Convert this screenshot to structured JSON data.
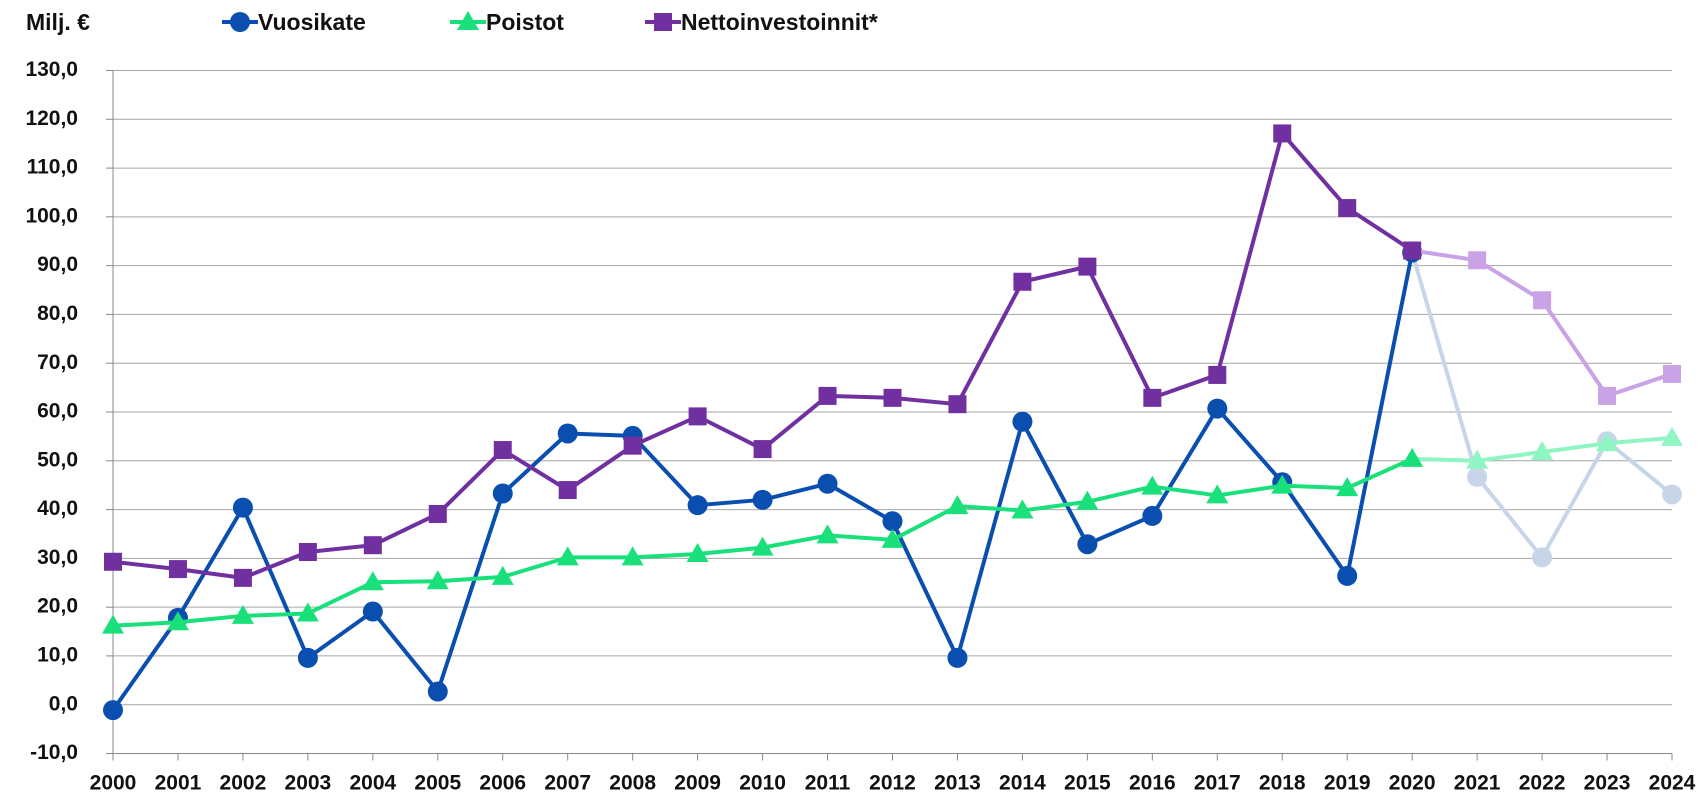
{
  "chart_data": {
    "type": "line",
    "y_label": "Milj. €",
    "categories": [
      "2000",
      "2001",
      "2002",
      "2003",
      "2004",
      "2005",
      "2006",
      "2007",
      "2008",
      "2009",
      "2010",
      "2011",
      "2012",
      "2013",
      "2014",
      "2015",
      "2016",
      "2017",
      "2018",
      "2019",
      "2020",
      "2021",
      "2022",
      "2023",
      "2024"
    ],
    "projected_from": "2020",
    "series": [
      {
        "name": "Vuosikate",
        "color": "#0a4fb0",
        "projected_color": "#c6d6e8",
        "marker": "circle",
        "values": [
          -1.1,
          17.8,
          40.4,
          9.6,
          19.1,
          2.7,
          43.3,
          55.6,
          55.1,
          40.9,
          42.0,
          45.3,
          37.6,
          9.6,
          58.0,
          32.9,
          38.7,
          60.7,
          45.6,
          26.4,
          92.7,
          46.7,
          30.2,
          54.0,
          43.1
        ]
      },
      {
        "name": "Poistot",
        "color": "#19e07a",
        "projected_color": "#8ff5c2",
        "marker": "triangle",
        "values": [
          16.2,
          16.9,
          18.2,
          18.7,
          25.1,
          25.3,
          26.2,
          30.2,
          30.2,
          30.9,
          32.2,
          34.7,
          33.8,
          40.7,
          39.8,
          41.6,
          44.7,
          42.9,
          44.9,
          44.4,
          50.4,
          50.0,
          51.8,
          53.6,
          54.7
        ]
      },
      {
        "name": "Nettoinvestoinnit*",
        "color": "#7030a0",
        "projected_color": "#c9a3e6",
        "marker": "square",
        "values": [
          29.3,
          27.8,
          26.0,
          31.3,
          32.7,
          39.1,
          52.2,
          44.0,
          53.1,
          59.1,
          52.4,
          63.3,
          62.9,
          61.6,
          86.7,
          89.8,
          62.9,
          67.6,
          117.1,
          101.8,
          93.1,
          91.1,
          82.9,
          63.3,
          67.8
        ]
      }
    ],
    "ylim": [
      -10,
      130
    ],
    "yticks": [
      {
        "value": -10,
        "label": "-10,0"
      },
      {
        "value": 0,
        "label": "0,0"
      },
      {
        "value": 10,
        "label": "10,0"
      },
      {
        "value": 20,
        "label": "20,0"
      },
      {
        "value": 30,
        "label": "30,0"
      },
      {
        "value": 40,
        "label": "40,0"
      },
      {
        "value": 50,
        "label": "50,0"
      },
      {
        "value": 60,
        "label": "60,0"
      },
      {
        "value": 70,
        "label": "70,0"
      },
      {
        "value": 80,
        "label": "80,0"
      },
      {
        "value": 90,
        "label": "90,0"
      },
      {
        "value": 100,
        "label": "100,0"
      },
      {
        "value": 110,
        "label": "110,0"
      },
      {
        "value": 120,
        "label": "120,0"
      },
      {
        "value": 130,
        "label": "130,0"
      }
    ],
    "grid": true
  }
}
